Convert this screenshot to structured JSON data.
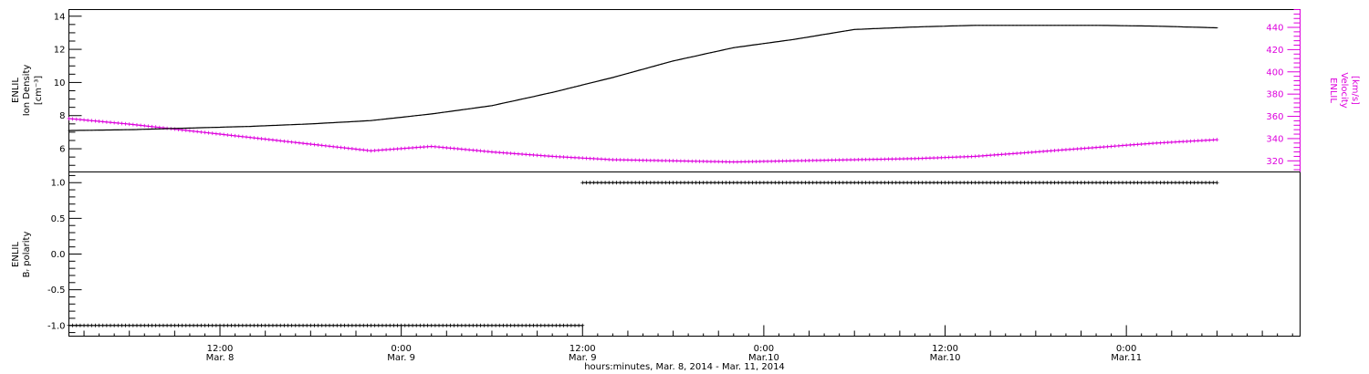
{
  "colors": {
    "density": "#000000",
    "velocity": "#dd00dd",
    "polarity": "#000000",
    "frame": "#000000"
  },
  "chart_data": [
    {
      "type": "line",
      "panel": "density-velocity",
      "left_axis": {
        "label_lines": [
          "ENLIL",
          "Ion Density",
          "[cm⁻³]"
        ],
        "range": [
          4.6,
          14.4
        ],
        "ticks": [
          6,
          8,
          10,
          12,
          14
        ],
        "tick_labels": [
          "6",
          "8",
          "10",
          "12",
          "14"
        ]
      },
      "right_axis": {
        "label_lines": [
          "ENLIL",
          "Velocity",
          "[km/s]"
        ],
        "range": [
          310,
          456
        ],
        "ticks": [
          320,
          340,
          360,
          380,
          400,
          420,
          440
        ],
        "tick_labels": [
          "320",
          "340",
          "360",
          "380",
          "400",
          "420",
          "440"
        ],
        "color": "#dd00dd"
      },
      "x_unit": "hours since Mar. 8, 2014 0:00",
      "series": [
        {
          "axis": "left",
          "color": "#000000",
          "x": [
            2,
            6,
            10,
            14,
            18,
            22,
            26,
            30,
            34,
            38,
            42,
            46,
            50,
            54,
            58,
            62,
            66,
            70,
            74,
            78
          ],
          "values": [
            7.1,
            7.15,
            7.25,
            7.35,
            7.5,
            7.7,
            8.1,
            8.6,
            9.4,
            10.3,
            11.3,
            12.1,
            12.6,
            13.2,
            13.35,
            13.45,
            13.45,
            13.45,
            13.4,
            13.3
          ]
        },
        {
          "axis": "right",
          "color": "#dd00dd",
          "x": [
            2,
            6,
            10,
            14,
            18,
            22,
            26,
            30,
            34,
            38,
            42,
            46,
            50,
            54,
            58,
            62,
            66,
            70,
            74,
            78
          ],
          "values": [
            358,
            353,
            347,
            341,
            335,
            329,
            333,
            328,
            324,
            321,
            320,
            319,
            320,
            321,
            322,
            324,
            328,
            332,
            336,
            339
          ]
        }
      ]
    },
    {
      "type": "line",
      "panel": "polarity",
      "left_axis": {
        "label_lines": [
          "ENLIL",
          "Bᵣ polarity"
        ],
        "range": [
          -1.15,
          1.15
        ],
        "ticks": [
          -1.0,
          -0.5,
          0.0,
          0.5,
          1.0
        ],
        "tick_labels": [
          "-1.0",
          "-0.5",
          "0.0",
          "0.5",
          "1.0"
        ]
      },
      "x_unit": "hours since Mar. 8, 2014 0:00",
      "series": [
        {
          "axis": "left",
          "color": "#000000",
          "x": [
            2,
            36
          ],
          "values": [
            -1,
            -1
          ]
        },
        {
          "axis": "left",
          "color": "#000000",
          "x": [
            36,
            78
          ],
          "values": [
            1,
            1
          ]
        }
      ]
    }
  ],
  "x_axis": {
    "range_hours": [
      2,
      83.5
    ],
    "major_ticks": [
      {
        "hour": 12,
        "time": "12:00",
        "date": "Mar. 8"
      },
      {
        "hour": 24,
        "time": "0:00",
        "date": "Mar. 9"
      },
      {
        "hour": 36,
        "time": "12:00",
        "date": "Mar. 9"
      },
      {
        "hour": 48,
        "time": "0:00",
        "date": "Mar.10"
      },
      {
        "hour": 60,
        "time": "12:00",
        "date": "Mar.10"
      },
      {
        "hour": 72,
        "time": "0:00",
        "date": "Mar.11"
      }
    ],
    "title": "hours:minutes, Mar.  8, 2014 - Mar. 11, 2014"
  }
}
